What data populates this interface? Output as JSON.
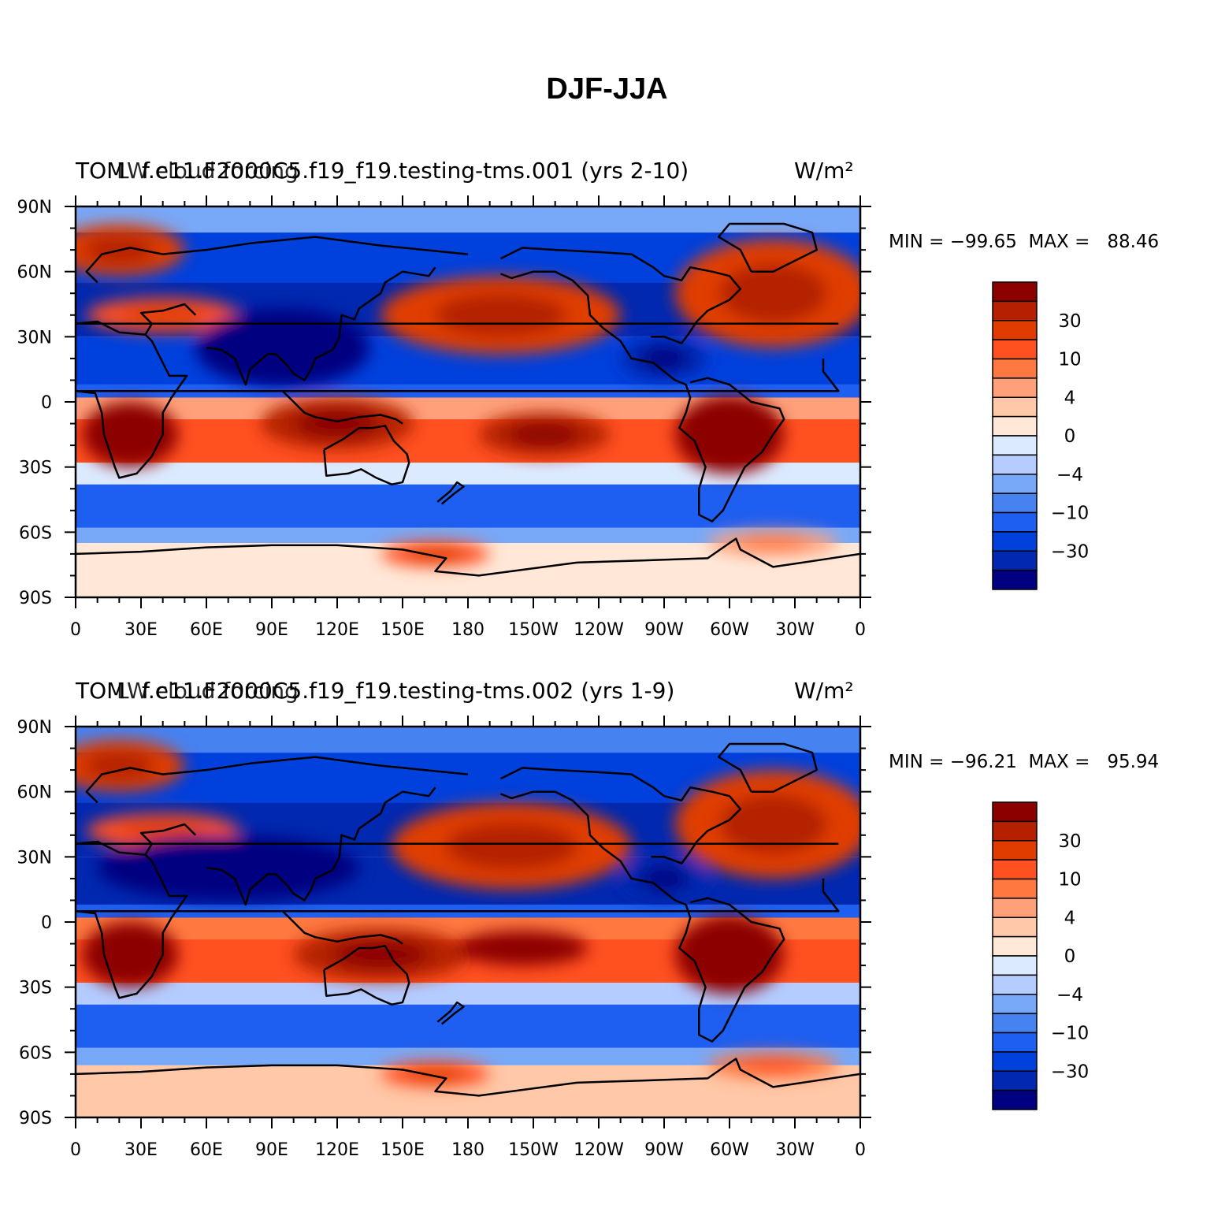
{
  "figure_title": "DJF-JJA",
  "colors": {
    "levels": [
      "#000080",
      "#0028b0",
      "#0040dc",
      "#1e5ef0",
      "#4682f0",
      "#78a8f8",
      "#b4ccff",
      "#dceaff",
      "#ffe8d8",
      "#ffc8a8",
      "#ffa07a",
      "#ff7840",
      "#ff5020",
      "#e03c00",
      "#b42000",
      "#8c0000"
    ],
    "coast": "#000000"
  },
  "chart_data": [
    {
      "type": "heatmap",
      "title_left": "TOM",
      "title_center": "f.e11.F2000C5.f19_f19.testing-tms.001 (yrs 2-10)",
      "title_right": "W/m²",
      "overlay_text": "LW cloud forcing",
      "units": "W/m²",
      "variable": "LW cloud forcing",
      "min_label": "MIN = −99.65  MAX =   88.46",
      "min": -99.65,
      "max": 88.46,
      "x_tick_labels": [
        "0",
        "30E",
        "60E",
        "90E",
        "120E",
        "150E",
        "180",
        "150W",
        "120W",
        "90W",
        "60W",
        "30W",
        "0"
      ],
      "y_tick_labels": [
        "90N",
        "60N",
        "30N",
        "0",
        "30S",
        "60S",
        "90S"
      ],
      "xlim": [
        0,
        360
      ],
      "ylim": [
        -90,
        90
      ],
      "colorbar_labels": [
        "30",
        "10",
        "4",
        "0",
        "−4",
        "−10",
        "−30"
      ],
      "zonal_bands": [
        {
          "lat_from": 90,
          "lat_to": 78,
          "level": 5
        },
        {
          "lat_from": 78,
          "lat_to": 55,
          "level": 2
        },
        {
          "lat_from": 55,
          "lat_to": 30,
          "level": 1
        },
        {
          "lat_from": 30,
          "lat_to": 8,
          "level": 2
        },
        {
          "lat_from": 8,
          "lat_to": 2,
          "level": 3
        },
        {
          "lat_from": 2,
          "lat_to": -8,
          "level": 10
        },
        {
          "lat_from": -8,
          "lat_to": -28,
          "level": 12
        },
        {
          "lat_from": -28,
          "lat_to": -38,
          "level": 7
        },
        {
          "lat_from": -38,
          "lat_to": -58,
          "level": 3
        },
        {
          "lat_from": -58,
          "lat_to": -65,
          "level": 5
        },
        {
          "lat_from": -65,
          "lat_to": -90,
          "level": 8
        }
      ],
      "blobs": [
        {
          "lon": 20,
          "lat": 70,
          "dlon": 30,
          "dlat": 12,
          "level": 13
        },
        {
          "lon": 40,
          "lat": 40,
          "dlon": 35,
          "dlat": 8,
          "level": 12
        },
        {
          "lon": 195,
          "lat": 40,
          "dlon": 55,
          "dlat": 18,
          "level": 13
        },
        {
          "lon": 320,
          "lat": 50,
          "dlon": 45,
          "dlat": 25,
          "level": 13
        },
        {
          "lon": 25,
          "lat": -15,
          "dlon": 22,
          "dlat": 15,
          "level": 15
        },
        {
          "lon": 120,
          "lat": -10,
          "dlon": 35,
          "dlat": 12,
          "level": 14
        },
        {
          "lon": 215,
          "lat": -15,
          "dlon": 30,
          "dlat": 10,
          "level": 14
        },
        {
          "lon": 300,
          "lat": -15,
          "dlon": 25,
          "dlat": 18,
          "level": 15
        },
        {
          "lon": 95,
          "lat": 25,
          "dlon": 40,
          "dlat": 18,
          "level": 0
        },
        {
          "lon": 270,
          "lat": 20,
          "dlon": 20,
          "dlat": 10,
          "level": 1
        },
        {
          "lon": 165,
          "lat": -70,
          "dlon": 25,
          "dlat": 6,
          "level": 12
        },
        {
          "lon": 320,
          "lat": -65,
          "dlon": 30,
          "dlat": 6,
          "level": 10
        }
      ]
    },
    {
      "type": "heatmap",
      "title_left": "TOM",
      "title_center": "f.e11.F2000C5.f19_f19.testing-tms.002 (yrs 1-9)",
      "title_right": "W/m²",
      "overlay_text": "LW cloud forcing",
      "units": "W/m²",
      "variable": "LW cloud forcing",
      "min_label": "MIN = −96.21  MAX =   95.94",
      "min": -96.21,
      "max": 95.94,
      "x_tick_labels": [
        "0",
        "30E",
        "60E",
        "90E",
        "120E",
        "150E",
        "180",
        "150W",
        "120W",
        "90W",
        "60W",
        "30W",
        "0"
      ],
      "y_tick_labels": [
        "90N",
        "60N",
        "30N",
        "0",
        "30S",
        "60S",
        "90S"
      ],
      "xlim": [
        0,
        360
      ],
      "ylim": [
        -90,
        90
      ],
      "colorbar_labels": [
        "30",
        "10",
        "4",
        "0",
        "−4",
        "−10",
        "−30"
      ],
      "zonal_bands": [
        {
          "lat_from": 90,
          "lat_to": 78,
          "level": 4
        },
        {
          "lat_from": 78,
          "lat_to": 55,
          "level": 2
        },
        {
          "lat_from": 55,
          "lat_to": 30,
          "level": 1
        },
        {
          "lat_from": 30,
          "lat_to": 8,
          "level": 1
        },
        {
          "lat_from": 8,
          "lat_to": 2,
          "level": 3
        },
        {
          "lat_from": 2,
          "lat_to": -8,
          "level": 11
        },
        {
          "lat_from": -8,
          "lat_to": -28,
          "level": 12
        },
        {
          "lat_from": -28,
          "lat_to": -38,
          "level": 6
        },
        {
          "lat_from": -38,
          "lat_to": -58,
          "level": 3
        },
        {
          "lat_from": -58,
          "lat_to": -66,
          "level": 5
        },
        {
          "lat_from": -66,
          "lat_to": -90,
          "level": 9
        }
      ],
      "blobs": [
        {
          "lon": 20,
          "lat": 72,
          "dlon": 30,
          "dlat": 12,
          "level": 13
        },
        {
          "lon": 40,
          "lat": 42,
          "dlon": 35,
          "dlat": 8,
          "level": 12
        },
        {
          "lon": 200,
          "lat": 35,
          "dlon": 55,
          "dlat": 20,
          "level": 13
        },
        {
          "lon": 320,
          "lat": 45,
          "dlon": 45,
          "dlat": 25,
          "level": 13
        },
        {
          "lon": 25,
          "lat": -15,
          "dlon": 22,
          "dlat": 15,
          "level": 15
        },
        {
          "lon": 140,
          "lat": -15,
          "dlon": 40,
          "dlat": 12,
          "level": 14
        },
        {
          "lon": 205,
          "lat": -12,
          "dlon": 30,
          "dlat": 8,
          "level": 15
        },
        {
          "lon": 300,
          "lat": -15,
          "dlon": 25,
          "dlat": 18,
          "level": 15
        },
        {
          "lon": 70,
          "lat": 25,
          "dlon": 60,
          "dlat": 15,
          "level": 0
        },
        {
          "lon": 270,
          "lat": 20,
          "dlon": 20,
          "dlat": 10,
          "level": 1
        },
        {
          "lon": 165,
          "lat": -70,
          "dlon": 25,
          "dlat": 6,
          "level": 12
        },
        {
          "lon": 320,
          "lat": -66,
          "dlon": 30,
          "dlat": 6,
          "level": 11
        }
      ]
    }
  ]
}
